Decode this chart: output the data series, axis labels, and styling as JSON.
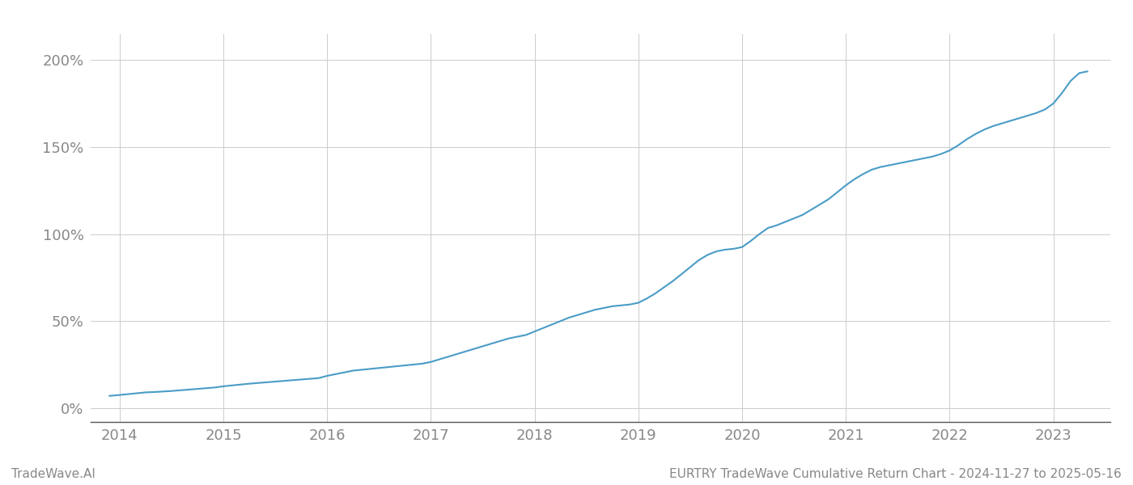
{
  "title": "EURTRY TradeWave Cumulative Return Chart - 2024-11-27 to 2025-05-16",
  "watermark": "TradeWave.AI",
  "line_color": "#4a9cc7",
  "background_color": "#ffffff",
  "grid_color": "#cccccc",
  "axis_color": "#999999",
  "text_color": "#888888",
  "x_ticks": [
    2014,
    2015,
    2016,
    2017,
    2018,
    2019,
    2020,
    2021,
    2022,
    2023
  ],
  "y_ticks": [
    0,
    50,
    100,
    150,
    200
  ],
  "xlim": [
    2013.72,
    2023.55
  ],
  "ylim": [
    -8,
    215
  ],
  "x_values": [
    2013.9,
    2014.0,
    2014.083,
    2014.167,
    2014.25,
    2014.333,
    2014.417,
    2014.5,
    2014.583,
    2014.667,
    2014.75,
    2014.833,
    2014.917,
    2015.0,
    2015.083,
    2015.167,
    2015.25,
    2015.333,
    2015.417,
    2015.5,
    2015.583,
    2015.667,
    2015.75,
    2015.833,
    2015.917,
    2016.0,
    2016.083,
    2016.167,
    2016.25,
    2016.333,
    2016.417,
    2016.5,
    2016.583,
    2016.667,
    2016.75,
    2016.833,
    2016.917,
    2017.0,
    2017.083,
    2017.167,
    2017.25,
    2017.333,
    2017.417,
    2017.5,
    2017.583,
    2017.667,
    2017.75,
    2017.833,
    2017.917,
    2018.0,
    2018.083,
    2018.167,
    2018.25,
    2018.333,
    2018.417,
    2018.5,
    2018.583,
    2018.667,
    2018.75,
    2018.833,
    2018.917,
    2019.0,
    2019.083,
    2019.167,
    2019.25,
    2019.333,
    2019.417,
    2019.5,
    2019.583,
    2019.667,
    2019.75,
    2019.833,
    2019.917,
    2020.0,
    2020.083,
    2020.167,
    2020.25,
    2020.333,
    2020.417,
    2020.5,
    2020.583,
    2020.667,
    2020.75,
    2020.833,
    2020.917,
    2021.0,
    2021.083,
    2021.167,
    2021.25,
    2021.333,
    2021.417,
    2021.5,
    2021.583,
    2021.667,
    2021.75,
    2021.833,
    2021.917,
    2022.0,
    2022.083,
    2022.167,
    2022.25,
    2022.333,
    2022.417,
    2022.5,
    2022.583,
    2022.667,
    2022.75,
    2022.833,
    2022.917,
    2023.0,
    2023.083,
    2023.167,
    2023.25,
    2023.33
  ],
  "y_values": [
    7,
    7.5,
    8,
    8.5,
    9,
    9.2,
    9.5,
    9.8,
    10.2,
    10.6,
    11.0,
    11.4,
    11.8,
    12.5,
    13.0,
    13.5,
    14.0,
    14.4,
    14.8,
    15.2,
    15.6,
    16.0,
    16.4,
    16.8,
    17.2,
    18.5,
    19.5,
    20.5,
    21.5,
    22.0,
    22.5,
    23.0,
    23.5,
    24.0,
    24.5,
    25.0,
    25.5,
    26.5,
    28.0,
    29.5,
    31.0,
    32.5,
    34.0,
    35.5,
    37.0,
    38.5,
    40.0,
    41.0,
    42.0,
    44.0,
    46.0,
    48.0,
    50.0,
    52.0,
    53.5,
    55.0,
    56.5,
    57.5,
    58.5,
    59.0,
    59.5,
    60.5,
    63.0,
    66.0,
    69.5,
    73.0,
    77.0,
    81.0,
    85.0,
    88.0,
    90.0,
    91.0,
    91.5,
    92.5,
    96.0,
    100.0,
    103.5,
    105.0,
    107.0,
    109.0,
    111.0,
    114.0,
    117.0,
    120.0,
    124.0,
    128.0,
    131.5,
    134.5,
    137.0,
    138.5,
    139.5,
    140.5,
    141.5,
    142.5,
    143.5,
    144.5,
    146.0,
    148.0,
    151.0,
    154.5,
    157.5,
    160.0,
    162.0,
    163.5,
    165.0,
    166.5,
    168.0,
    169.5,
    171.5,
    175.0,
    181.0,
    188.0,
    192.5,
    193.5
  ],
  "line_width": 1.5,
  "title_fontsize": 11,
  "watermark_fontsize": 11,
  "tick_fontsize": 13
}
